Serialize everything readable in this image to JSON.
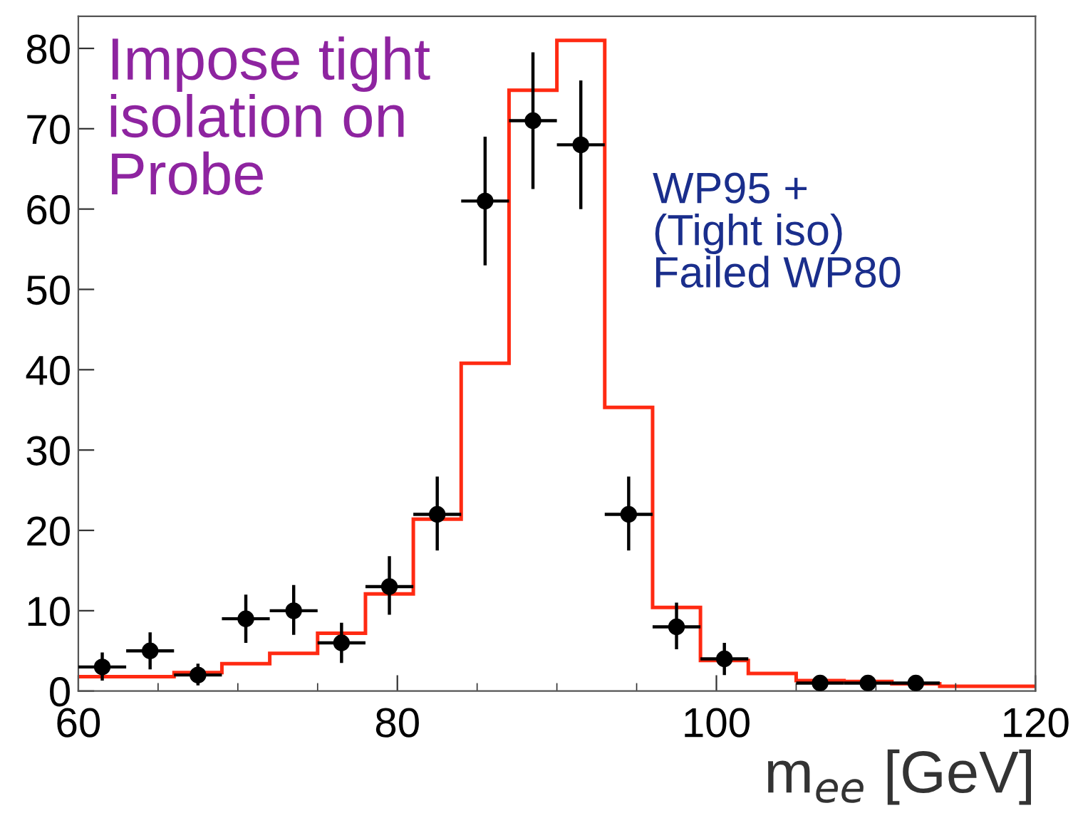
{
  "chart_data": {
    "type": "histogram",
    "xlabel": "m$_{ee}$ [GeV]",
    "xlim": [
      60,
      120
    ],
    "xticks": [
      60,
      {
        "value": 65,
        "label": null
      },
      {
        "value": 70,
        "label": null
      },
      {
        "value": 75,
        "label": null
      },
      80,
      {
        "value": 85,
        "label": null
      },
      {
        "value": 90,
        "label": null
      },
      {
        "value": 95,
        "label": null
      },
      100,
      {
        "value": 105,
        "label": null
      },
      {
        "value": 110,
        "label": null
      },
      {
        "value": 115,
        "label": null
      },
      120
    ],
    "ylim": [
      0,
      84
    ],
    "yticks": [
      0,
      10,
      20,
      30,
      40,
      50,
      60,
      70,
      80
    ],
    "series": [
      {
        "color": "#ff2a12",
        "bins": [
          60,
          63,
          66,
          69,
          72,
          75,
          78,
          81,
          84,
          87,
          90,
          93,
          96,
          99,
          102,
          105,
          108,
          111,
          114,
          117,
          120
        ],
        "values": [
          1.8,
          1.8,
          2.3,
          3.4,
          4.7,
          7.2,
          12.1,
          21.4,
          40.8,
          74.8,
          81,
          35.3,
          10.4,
          3.8,
          2.2,
          1.3,
          1.2,
          0.9,
          0.6,
          0.6
        ]
      },
      {
        "type": "scatter",
        "color": "#000000",
        "marker": "circle",
        "x": [
          61.5,
          64.5,
          67.5,
          70.5,
          73.5,
          76.5,
          79.5,
          82.5,
          85.5,
          88.5,
          91.5,
          94.5,
          97.5,
          100.5,
          106.5,
          109.5,
          112.5
        ],
        "values": [
          3,
          5,
          2,
          9,
          10,
          6,
          13,
          22,
          61,
          71,
          68,
          22,
          8,
          4,
          1,
          1,
          1
        ],
        "errors": [
          [
            1.3,
            4.8
          ],
          [
            2.7,
            7.3
          ],
          [
            0.7,
            3.4
          ],
          [
            6,
            12
          ],
          [
            7,
            13.2
          ],
          [
            3.5,
            8.5
          ],
          [
            9.5,
            16.8
          ],
          [
            17.5,
            26.7
          ],
          [
            53,
            69
          ],
          [
            62.5,
            79.5
          ],
          [
            60,
            76
          ],
          [
            17.5,
            26.7
          ],
          [
            5.2,
            11
          ],
          [
            2,
            6
          ],
          [
            0.2,
            2
          ],
          [
            0.2,
            2
          ],
          [
            0.2,
            2
          ]
        ],
        "xerrors": [
          1.5,
          1.5,
          1.5,
          1.5,
          1.5,
          1.5,
          1.5,
          1.5,
          1.5,
          1.5,
          1.5,
          1.5,
          1.5,
          1.5,
          1.5,
          1.5,
          1.5
        ]
      }
    ],
    "annotations": [
      "Impose tight\nisolation on\nProbe",
      "WP95 +\n(Tight iso)\nFailed WP80"
    ],
    "grid": false,
    "legend": false
  }
}
